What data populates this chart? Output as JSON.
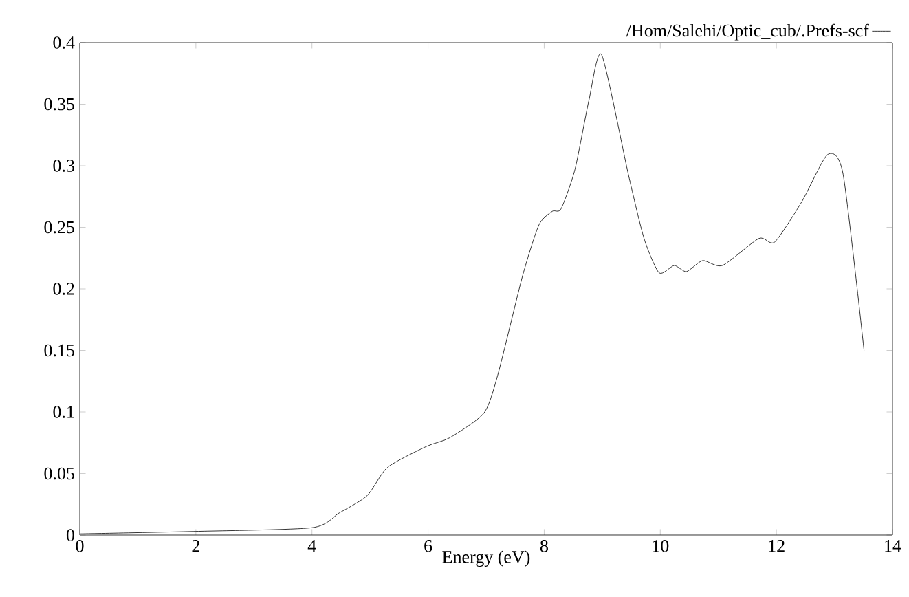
{
  "chart_data": {
    "type": "line",
    "xlabel": "Energy (eV)",
    "xlim": [
      0,
      14
    ],
    "xticks": [
      0,
      2,
      4,
      6,
      8,
      10,
      12,
      14
    ],
    "ylim": [
      0,
      0.4
    ],
    "yticks": [
      0,
      0.05,
      0.1,
      0.15,
      0.2,
      0.25,
      0.3,
      0.35,
      0.4
    ],
    "legend": "top right",
    "series": [
      {
        "name": "/Hom/Salehi/Optic_cub/.Prefs-scf",
        "color": "#000000",
        "x": [
          0,
          2,
          4,
          4.47,
          4.95,
          5.3,
          5.97,
          6.37,
          6.96,
          7.2,
          7.63,
          7.91,
          8.14,
          8.29,
          8.53,
          8.77,
          8.99,
          9.45,
          9.72,
          9.98,
          10.24,
          10.45,
          10.73,
          11.07,
          11.7,
          11.97,
          12.44,
          12.88,
          13.15,
          13.51
        ],
        "values": [
          0.001,
          0.003,
          0.006,
          0.018,
          0.032,
          0.055,
          0.072,
          0.079,
          0.099,
          0.13,
          0.211,
          0.252,
          0.263,
          0.265,
          0.297,
          0.353,
          0.39,
          0.293,
          0.241,
          0.213,
          0.219,
          0.214,
          0.223,
          0.219,
          0.241,
          0.238,
          0.271,
          0.309,
          0.293,
          0.15
        ]
      }
    ]
  }
}
